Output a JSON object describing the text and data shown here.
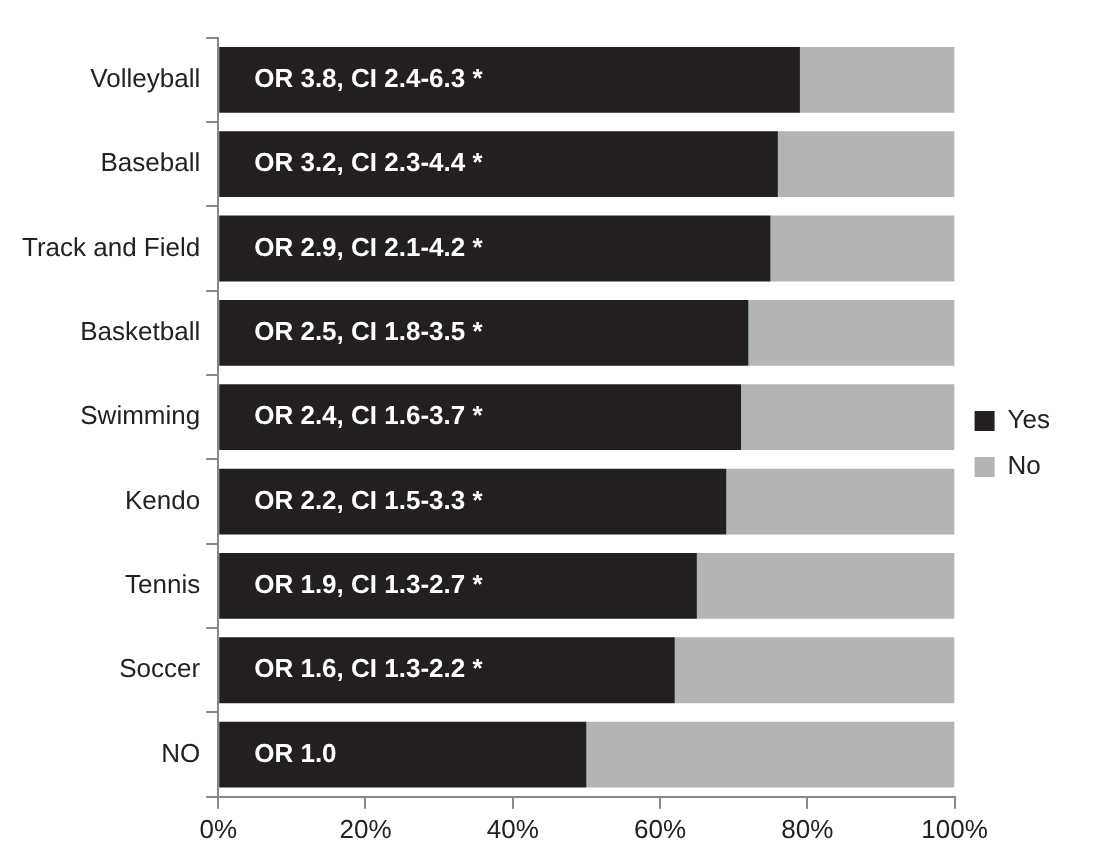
{
  "chart_data": {
    "type": "bar",
    "orientation": "horizontal",
    "stacked": true,
    "legend": "right",
    "grid": false,
    "categories": [
      "Volleyball",
      "Baseball",
      "Track and Field",
      "Basketball",
      "Swimming",
      "Kendo",
      "Tennis",
      "Soccer",
      "NO"
    ],
    "series": [
      {
        "name": "Yes",
        "color": "#231f20",
        "values": [
          79,
          76,
          75,
          72,
          71,
          69,
          65,
          62,
          50
        ]
      },
      {
        "name": "No",
        "color": "#b3b4b6",
        "values": [
          21,
          24,
          25,
          28,
          29,
          31,
          35,
          38,
          50
        ]
      }
    ],
    "xlim": [
      0,
      100
    ],
    "xticks": [
      {
        "value": 0,
        "label": "0%"
      },
      {
        "value": 20,
        "label": "20%"
      },
      {
        "value": 40,
        "label": "40%"
      },
      {
        "value": 60,
        "label": "60%"
      },
      {
        "value": 80,
        "label": "80%"
      },
      {
        "value": 100,
        "label": "100%"
      }
    ],
    "annotations": [
      {
        "text": "OR 3.8, CI 2.4-6.3 *",
        "y": "Volleyball"
      },
      {
        "text": "OR 3.2, CI 2.3-4.4 *",
        "y": "Baseball"
      },
      {
        "text": "OR 2.9, CI 2.1-4.2 *",
        "y": "Track and Field"
      },
      {
        "text": "OR 2.5, CI 1.8-3.5 *",
        "y": "Basketball"
      },
      {
        "text": "OR 2.4, CI 1.6-3.7 *",
        "y": "Swimming"
      },
      {
        "text": "OR 2.2, CI 1.5-3.3 *",
        "y": "Kendo"
      },
      {
        "text": "OR 1.9, CI 1.3-2.7 *",
        "y": "Tennis"
      },
      {
        "text": "OR 1.6, CI 1.3-2.2 *",
        "y": "Soccer"
      },
      {
        "text": "OR 1.0",
        "y": "NO"
      }
    ]
  }
}
